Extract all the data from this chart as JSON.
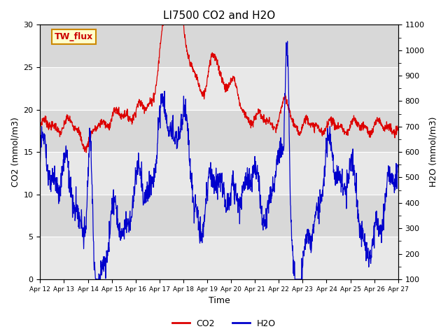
{
  "title": "LI7500 CO2 and H2O",
  "xlabel": "Time",
  "ylabel_left": "CO2 (mmol/m3)",
  "ylabel_right": "H2O (mmol/m3)",
  "ylim_left": [
    0,
    30
  ],
  "ylim_right": [
    100,
    1100
  ],
  "yticks_left": [
    0,
    5,
    10,
    15,
    20,
    25,
    30
  ],
  "yticks_right": [
    100,
    200,
    300,
    400,
    500,
    600,
    700,
    800,
    900,
    1000,
    1100
  ],
  "date_labels": [
    "Apr 12",
    "Apr 13",
    "Apr 14",
    "Apr 15",
    "Apr 16",
    "Apr 17",
    "Apr 18",
    "Apr 19",
    "Apr 20",
    "Apr 21",
    "Apr 22",
    "Apr 23",
    "Apr 24",
    "Apr 25",
    "Apr 26",
    "Apr 27"
  ],
  "n_days": 15,
  "background_color": "#e8e8e8",
  "co2_color": "#dd0000",
  "h2o_color": "#0000cc",
  "annotation_text": "TW_flux",
  "annotation_bg": "#ffffcc",
  "annotation_border": "#cc8800",
  "legend_co2": "CO2",
  "legend_h2o": "H2O",
  "fig_width": 6.4,
  "fig_height": 4.8,
  "dpi": 100
}
